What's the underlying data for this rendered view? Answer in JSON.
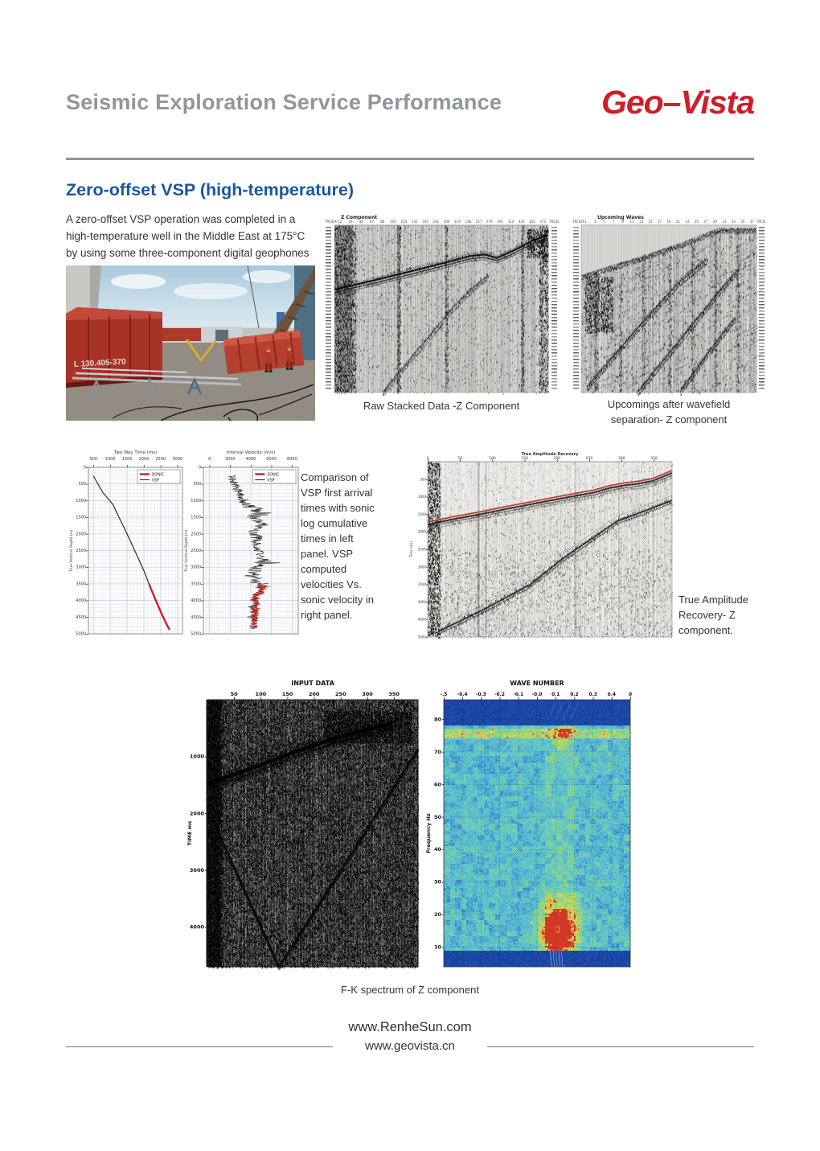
{
  "colors": {
    "logo_red": "#ce1e2b",
    "heading_blue": "#1a57a0",
    "header_gray": "#8f969c",
    "divider_gray": "#909497",
    "body_text": "#333333",
    "sonic_red": "#cc2026",
    "vsp_black": "#2b2b2b"
  },
  "header": {
    "title": "Seismic Exploration Service Performance",
    "logo": "Geo–Vista"
  },
  "section_title": "Zero-offset VSP  (high-temperature)",
  "intro": "A zero-offset VSP operation was completed in a high-temperature well in the Middle East at 175°C by using some three-component digital geophones",
  "photo": {
    "label": "L 130.405-370"
  },
  "captions": {
    "raw": "Raw Stacked Data -Z Component",
    "upcoming": "Upcomings after wavefield separation- Z component",
    "mid": "Comparison of VSP first arrival times with sonic log cumulative times in left panel. VSP computed velocities Vs. sonic velocity in right panel.",
    "tar": "True Amplitude Recovery- Z component.",
    "fk": "F-K spectrum of Z component"
  },
  "footer": {
    "url1": "www.RenheSun.com",
    "url2": "www.geovista.cn"
  },
  "chart_data": [
    {
      "id": "twt",
      "type": "line",
      "title": "Two Way Time (ms)",
      "ylabel": "True Vertical Depth (m)",
      "xlim": [
        350,
        3150
      ],
      "ylim": [
        0,
        5000
      ],
      "x_ticks": [
        500,
        1000,
        1500,
        2000,
        2500,
        3000
      ],
      "y_ticks": [
        0,
        500,
        1000,
        1500,
        2000,
        2500,
        3000,
        3500,
        4000,
        4500,
        5000
      ],
      "legend": [
        "SONIC",
        "VSP"
      ],
      "grid": true,
      "series": [
        {
          "name": "VSP",
          "color": "#2b2b2b",
          "points": [
            [
              500,
              260
            ],
            [
              620,
              480
            ],
            [
              780,
              760
            ],
            [
              950,
              960
            ],
            [
              1080,
              1120
            ],
            [
              1250,
              1480
            ],
            [
              1430,
              1850
            ],
            [
              1620,
              2260
            ],
            [
              1810,
              2680
            ],
            [
              2000,
              3100
            ],
            [
              2160,
              3520
            ],
            [
              2340,
              3960
            ],
            [
              2520,
              4380
            ],
            [
              2700,
              4760
            ],
            [
              2770,
              4880
            ]
          ]
        },
        {
          "name": "SONIC",
          "color": "#cc2026",
          "points": [
            [
              2160,
              3520
            ],
            [
              2340,
              3960
            ],
            [
              2520,
              4380
            ],
            [
              2700,
              4760
            ],
            [
              2770,
              4880
            ]
          ]
        }
      ]
    },
    {
      "id": "velocity",
      "type": "line",
      "title": "Interval Velocity (m/s)",
      "ylabel": "True Vertical Depth (m)",
      "xlim": [
        -600,
        8600
      ],
      "ylim": [
        0,
        5000
      ],
      "x_ticks": [
        0,
        2000,
        4000,
        6000,
        8000
      ],
      "y_ticks": [
        0,
        500,
        1000,
        1500,
        2000,
        2500,
        3000,
        3500,
        4000,
        4500,
        5000
      ],
      "legend": [
        "SONIC",
        "VSP"
      ],
      "grid": true,
      "series": [
        {
          "name": "VSP",
          "color": "#2b2b2b",
          "depth_range": [
            250,
            4850
          ],
          "trend": [
            [
              250,
              2050
            ],
            [
              550,
              2450
            ],
            [
              800,
              2900
            ],
            [
              1000,
              3300
            ],
            [
              1200,
              3900
            ],
            [
              1350,
              5400
            ],
            [
              1500,
              4200
            ],
            [
              1700,
              4900
            ],
            [
              1900,
              4300
            ],
            [
              2150,
              4600
            ],
            [
              2400,
              4500
            ],
            [
              2650,
              4800
            ],
            [
              2900,
              5300
            ],
            [
              3050,
              4500
            ],
            [
              3250,
              4200
            ],
            [
              3500,
              4700
            ],
            [
              3700,
              5000
            ],
            [
              3900,
              4400
            ],
            [
              4100,
              4500
            ],
            [
              4300,
              4350
            ],
            [
              4500,
              4400
            ],
            [
              4700,
              4300
            ],
            [
              4850,
              4300
            ]
          ]
        },
        {
          "name": "SONIC",
          "color": "#cc2026",
          "depth_range": [
            3480,
            4820
          ],
          "trend": [
            [
              3480,
              4900
            ],
            [
              3650,
              5300
            ],
            [
              3750,
              4800
            ],
            [
              3900,
              4500
            ],
            [
              4050,
              4400
            ],
            [
              4250,
              4500
            ],
            [
              4450,
              4350
            ],
            [
              4650,
              4300
            ],
            [
              4820,
              4300
            ]
          ]
        }
      ]
    },
    {
      "id": "raw",
      "type": "seismic-wiggle",
      "title": "Z Component",
      "corner_label": "TRCIDX",
      "trace_ticks": [
        12,
        29,
        48,
        67,
        86,
        105,
        124,
        143,
        162,
        181,
        200,
        219,
        238,
        257,
        276,
        295,
        314,
        333,
        352,
        371
      ],
      "features": {
        "first_break": [
          [
            0,
            0.385
          ],
          [
            0.2,
            0.325
          ],
          [
            0.4,
            0.262
          ],
          [
            0.55,
            0.213
          ],
          [
            0.63,
            0.185
          ],
          [
            0.7,
            0.175
          ],
          [
            0.76,
            0.195
          ],
          [
            0.84,
            0.15
          ],
          [
            0.93,
            0.09
          ],
          [
            1,
            0.06
          ]
        ],
        "slow_wave": [
          [
            0.225,
            1.0
          ],
          [
            0.4,
            0.73
          ],
          [
            0.55,
            0.5
          ],
          [
            0.65,
            0.37
          ],
          [
            0.72,
            0.3
          ]
        ]
      }
    },
    {
      "id": "upcoming",
      "type": "seismic-wiggle",
      "title": "Upcoming Waves",
      "corner_label": "TRCIDX",
      "trace_ticks": [
        1,
        3,
        5,
        7,
        9,
        11,
        13,
        15,
        17,
        19,
        21,
        23,
        25,
        27,
        29,
        31,
        33,
        35,
        37
      ],
      "features": {
        "mute_line": [
          [
            0,
            0.3
          ],
          [
            0.3,
            0.2
          ],
          [
            0.55,
            0.115
          ],
          [
            0.78,
            0.02
          ],
          [
            1,
            0.02
          ]
        ],
        "diagonals": [
          [
            [
              0.03,
              0.97
            ],
            [
              0.3,
              0.64
            ],
            [
              0.55,
              0.35
            ],
            [
              0.72,
              0.2
            ]
          ],
          [
            [
              0.32,
              1.0
            ],
            [
              0.6,
              0.64
            ],
            [
              0.8,
              0.38
            ],
            [
              0.9,
              0.26
            ]
          ],
          [
            [
              0.56,
              1.0
            ],
            [
              0.74,
              0.74
            ],
            [
              0.88,
              0.55
            ]
          ]
        ]
      }
    },
    {
      "id": "tar",
      "type": "seismic-wiggle",
      "title": "True Amplitude Recovery",
      "ylabel": "Time (ms)",
      "x_ticks": [
        0,
        50,
        100,
        150,
        200,
        250,
        300,
        350
      ],
      "y_ticks": [
        500,
        1000,
        1500,
        2000,
        2500,
        3000,
        3500,
        4000,
        4500,
        5000
      ],
      "red": "#c23b2a",
      "features": {
        "red_line": [
          [
            0,
            0.345
          ],
          [
            0.1,
            0.315
          ],
          [
            0.2,
            0.29
          ],
          [
            0.3,
            0.262
          ],
          [
            0.4,
            0.235
          ],
          [
            0.5,
            0.208
          ],
          [
            0.6,
            0.182
          ],
          [
            0.68,
            0.162
          ],
          [
            0.74,
            0.138
          ],
          [
            0.8,
            0.122
          ],
          [
            0.86,
            0.112
          ],
          [
            0.92,
            0.096
          ],
          [
            1,
            0.05
          ]
        ],
        "reflection": [
          [
            0.04,
            0.97
          ],
          [
            0.22,
            0.85
          ],
          [
            0.42,
            0.7
          ],
          [
            0.55,
            0.555
          ],
          [
            0.68,
            0.43
          ],
          [
            0.78,
            0.335
          ],
          [
            0.88,
            0.285
          ],
          [
            1,
            0.22
          ]
        ]
      }
    },
    {
      "id": "input",
      "type": "seismic-wiggle",
      "title": "INPUT DATA",
      "ylabel": "TIME ms",
      "x_ticks": [
        50,
        100,
        150,
        200,
        250,
        300,
        350
      ],
      "y_ticks": [
        1000,
        2000,
        3000,
        4000
      ],
      "features": {
        "first_break": [
          [
            0,
            0.315
          ],
          [
            0.2,
            0.26
          ],
          [
            0.4,
            0.2
          ],
          [
            0.6,
            0.145
          ],
          [
            0.75,
            0.115
          ],
          [
            0.88,
            0.088
          ]
        ],
        "v_wave": [
          [
            0.02,
            0.44
          ],
          [
            0.34,
            1.0
          ],
          [
            1.0,
            0.185
          ]
        ]
      }
    },
    {
      "id": "fk",
      "type": "heatmap",
      "title": "WAVE NUMBER",
      "ylabel": "Frequency Hz",
      "x_ticks": [
        "-.5",
        "-0.4",
        "-0.3",
        "-0.2",
        "-0.1",
        "-0.0",
        "0.1",
        "0.2",
        "0.3",
        "0.4",
        "0"
      ],
      "y_ticks": [
        80,
        70,
        60,
        50,
        40,
        30,
        20,
        10
      ],
      "freq_range": [
        4,
        86
      ],
      "energy_peak": {
        "wavenumber": 0.11,
        "frequency_hz": 15
      },
      "notes": "Energy concentrated near k≈0.1 at 10–25 Hz (peak ~15 Hz, red spot); bright band near 76 Hz; dark blue mute bands above 78 Hz and below 9 Hz"
    }
  ]
}
